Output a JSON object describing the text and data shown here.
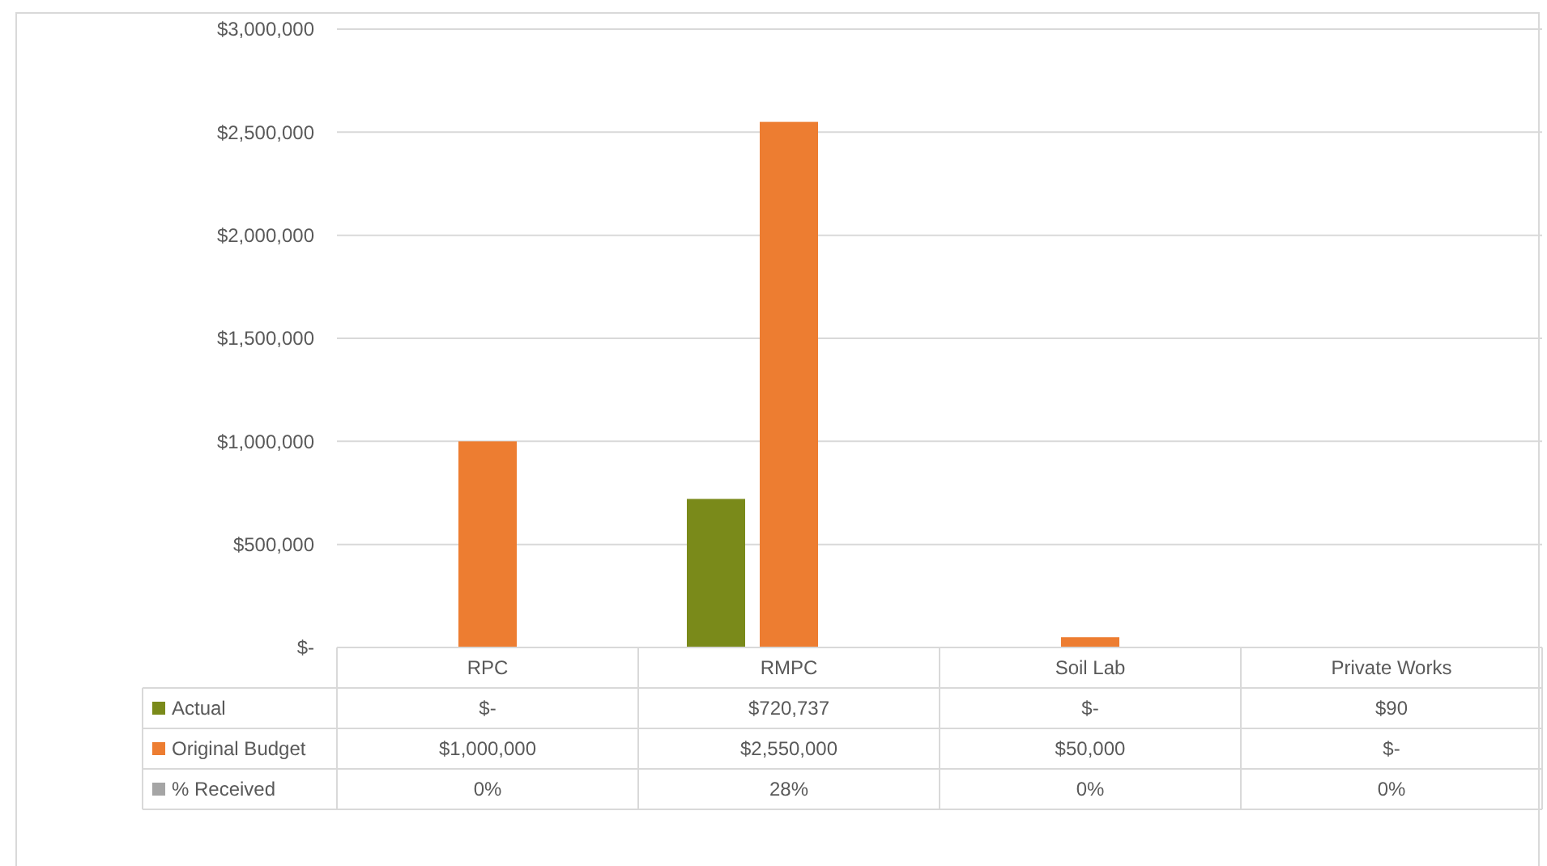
{
  "chart_data": {
    "type": "bar",
    "categories": [
      "RPC",
      "RMPC",
      "Soil Lab",
      "Private Works"
    ],
    "series": [
      {
        "name": "Actual",
        "color": "#7a8a1a",
        "values": [
          0,
          720737,
          0,
          90
        ],
        "value_labels": [
          "$-",
          "$720,737",
          "$-",
          "$90"
        ]
      },
      {
        "name": "Original Budget",
        "color": "#ed7d31",
        "values": [
          1000000,
          2550000,
          50000,
          0
        ],
        "value_labels": [
          "$1,000,000",
          "$2,550,000",
          "$50,000",
          "$-"
        ]
      },
      {
        "name": "% Received",
        "color": "#a5a5a5",
        "values": [
          0,
          28,
          0,
          0
        ],
        "value_labels": [
          "0%",
          "28%",
          "0%",
          "0%"
        ]
      }
    ],
    "ylim": [
      0,
      3000000
    ],
    "yticks": [
      {
        "value": 0,
        "label": "$-"
      },
      {
        "value": 500000,
        "label": "$500,000"
      },
      {
        "value": 1000000,
        "label": "$1,000,000"
      },
      {
        "value": 1500000,
        "label": "$1,500,000"
      },
      {
        "value": 2000000,
        "label": "$2,000,000"
      },
      {
        "value": 2500000,
        "label": "$2,500,000"
      },
      {
        "value": 3000000,
        "label": "$3,000,000"
      }
    ],
    "grid": true,
    "legend": "bottom"
  }
}
